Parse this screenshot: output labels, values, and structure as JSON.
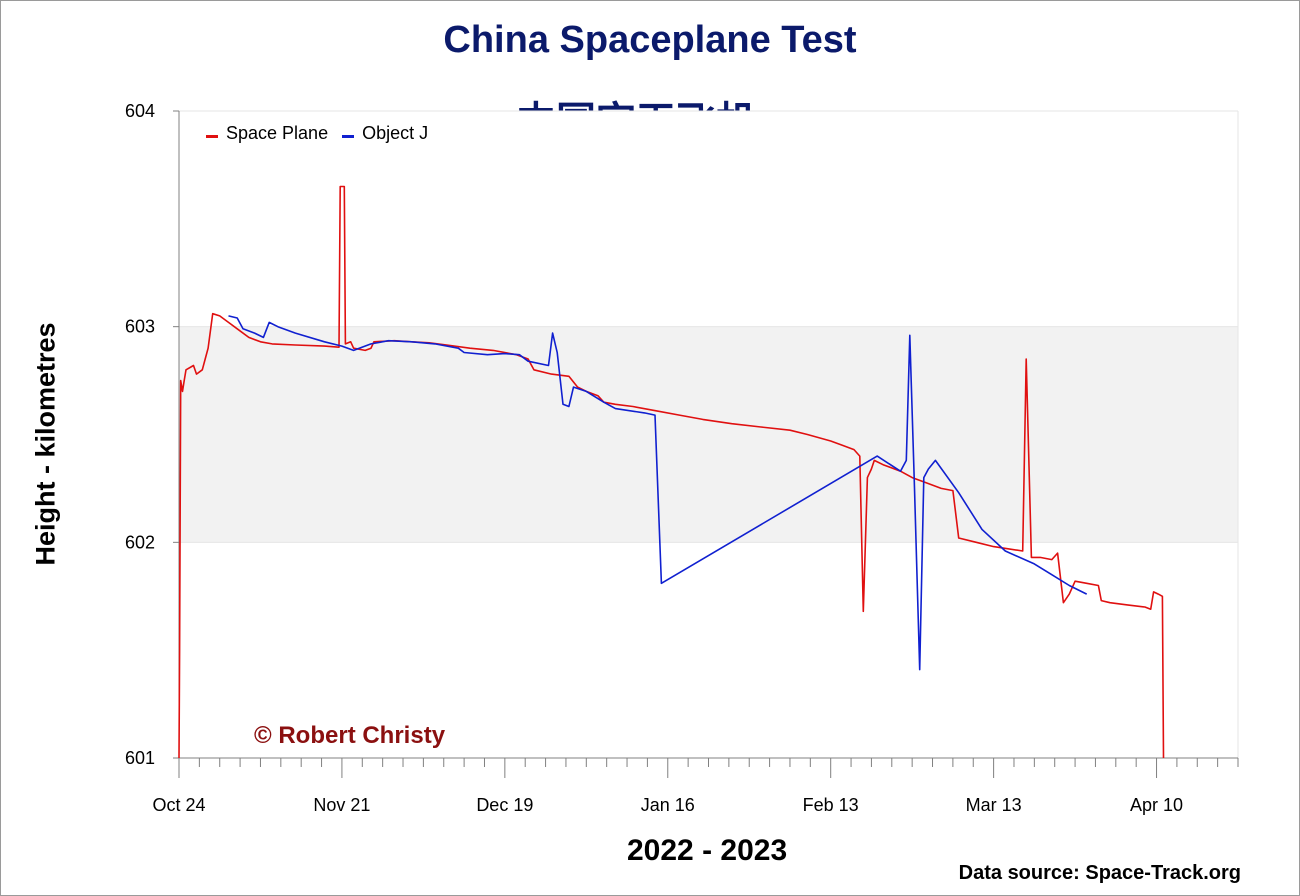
{
  "chart_data": {
    "type": "line",
    "title": "China Spaceplane Test",
    "subtitle": "中国空天飞机",
    "xlabel": "2022 - 2023",
    "ylabel": "Height - kilometres",
    "source": "Data source: Space-Track.org",
    "copyright": "© Robert Christy",
    "ylim": [
      601,
      604
    ],
    "yticks": [
      601,
      602,
      603,
      604
    ],
    "xlim_days": [
      0,
      182
    ],
    "x_start_label": "Oct 24",
    "xticks": [
      {
        "day": 0,
        "label": "Oct 24"
      },
      {
        "day": 28,
        "label": "Nov 21"
      },
      {
        "day": 56,
        "label": "Dec 19"
      },
      {
        "day": 84,
        "label": "Jan 16"
      },
      {
        "day": 112,
        "label": "Feb 13"
      },
      {
        "day": 140,
        "label": "Mar 13"
      },
      {
        "day": 168,
        "label": "Apr 10"
      }
    ],
    "shaded_band": [
      602,
      603
    ],
    "grid": true,
    "legend_position": "top-left",
    "series": [
      {
        "name": "Space Plane",
        "color": "#e01010",
        "points": [
          [
            0,
            601.0
          ],
          [
            0.1,
            601.5
          ],
          [
            0.3,
            602.75
          ],
          [
            0.6,
            602.7
          ],
          [
            0.9,
            602.75
          ],
          [
            1.2,
            602.8
          ],
          [
            2.5,
            602.82
          ],
          [
            3.0,
            602.78
          ],
          [
            4.0,
            602.8
          ],
          [
            4.5,
            602.85
          ],
          [
            5.0,
            602.9
          ],
          [
            5.8,
            603.06
          ],
          [
            7.0,
            603.05
          ],
          [
            8.5,
            603.02
          ],
          [
            10.0,
            602.99
          ],
          [
            12.0,
            602.95
          ],
          [
            14.0,
            602.93
          ],
          [
            16.0,
            602.92
          ],
          [
            20.0,
            602.915
          ],
          [
            25.0,
            602.91
          ],
          [
            27.5,
            602.905
          ],
          [
            27.7,
            603.65
          ],
          [
            28.4,
            603.65
          ],
          [
            28.6,
            602.92
          ],
          [
            29.5,
            602.93
          ],
          [
            30.0,
            602.9
          ],
          [
            32.0,
            602.89
          ],
          [
            33.0,
            602.9
          ],
          [
            33.5,
            602.93
          ],
          [
            37.0,
            602.935
          ],
          [
            40.0,
            602.93
          ],
          [
            43.0,
            602.925
          ],
          [
            46.0,
            602.915
          ],
          [
            50.0,
            602.9
          ],
          [
            54.0,
            602.89
          ],
          [
            58.0,
            602.87
          ],
          [
            60.0,
            602.85
          ],
          [
            61.0,
            602.8
          ],
          [
            64.0,
            602.78
          ],
          [
            67.0,
            602.77
          ],
          [
            68.5,
            602.72
          ],
          [
            70.0,
            602.7
          ],
          [
            72.0,
            602.68
          ],
          [
            73.0,
            602.65
          ],
          [
            75.0,
            602.64
          ],
          [
            78.0,
            602.63
          ],
          [
            82.0,
            602.61
          ],
          [
            86.0,
            602.59
          ],
          [
            90.0,
            602.57
          ],
          [
            95.0,
            602.55
          ],
          [
            100.0,
            602.535
          ],
          [
            105.0,
            602.52
          ],
          [
            108.0,
            602.5
          ],
          [
            112.0,
            602.47
          ],
          [
            114.0,
            602.45
          ],
          [
            116.0,
            602.43
          ],
          [
            117.0,
            602.4
          ],
          [
            117.6,
            601.68
          ],
          [
            118.3,
            602.3
          ],
          [
            119.0,
            602.34
          ],
          [
            119.5,
            602.38
          ],
          [
            121.0,
            602.36
          ],
          [
            124.0,
            602.33
          ],
          [
            126.0,
            602.3
          ],
          [
            128.0,
            602.28
          ],
          [
            131.0,
            602.25
          ],
          [
            133.0,
            602.24
          ],
          [
            134.0,
            602.02
          ],
          [
            137.0,
            602.0
          ],
          [
            140.0,
            601.98
          ],
          [
            145.0,
            601.96
          ],
          [
            145.6,
            602.85
          ],
          [
            146.5,
            601.93
          ],
          [
            148.0,
            601.93
          ],
          [
            150.0,
            601.92
          ],
          [
            151.0,
            601.95
          ],
          [
            152.0,
            601.72
          ],
          [
            153.0,
            601.76
          ],
          [
            154.0,
            601.82
          ],
          [
            156.0,
            601.81
          ],
          [
            158.0,
            601.8
          ],
          [
            158.5,
            601.73
          ],
          [
            160.0,
            601.72
          ],
          [
            163.0,
            601.71
          ],
          [
            166.0,
            601.7
          ],
          [
            167.0,
            601.69
          ],
          [
            167.5,
            601.77
          ],
          [
            168.3,
            601.76
          ],
          [
            169.0,
            601.75
          ],
          [
            169.2,
            601.0
          ]
        ]
      },
      {
        "name": "Object J",
        "color": "#1020d0",
        "points": [
          [
            8.5,
            603.05
          ],
          [
            10.0,
            603.04
          ],
          [
            11.0,
            602.99
          ],
          [
            13.0,
            602.97
          ],
          [
            14.5,
            602.95
          ],
          [
            15.5,
            603.02
          ],
          [
            17.0,
            603.0
          ],
          [
            20.0,
            602.97
          ],
          [
            25.0,
            602.93
          ],
          [
            28.0,
            602.91
          ],
          [
            30.0,
            602.89
          ],
          [
            33.0,
            602.92
          ],
          [
            36.0,
            602.935
          ],
          [
            40.0,
            602.93
          ],
          [
            44.0,
            602.92
          ],
          [
            48.0,
            602.9
          ],
          [
            49.0,
            602.88
          ],
          [
            53.0,
            602.87
          ],
          [
            56.0,
            602.875
          ],
          [
            58.5,
            602.87
          ],
          [
            60.0,
            602.84
          ],
          [
            63.5,
            602.82
          ],
          [
            64.2,
            602.97
          ],
          [
            65.0,
            602.88
          ],
          [
            66.0,
            602.64
          ],
          [
            67.0,
            602.63
          ],
          [
            67.8,
            602.72
          ],
          [
            70.0,
            602.7
          ],
          [
            73.0,
            602.65
          ],
          [
            75.0,
            602.62
          ],
          [
            80.0,
            602.6
          ],
          [
            81.8,
            602.59
          ],
          [
            82.9,
            601.81
          ],
          [
            120.0,
            602.4
          ],
          [
            124.0,
            602.33
          ],
          [
            125.0,
            602.38
          ],
          [
            125.6,
            602.96
          ],
          [
            126.4,
            602.25
          ],
          [
            127.3,
            601.41
          ],
          [
            128.0,
            602.3
          ],
          [
            128.8,
            602.34
          ],
          [
            130.0,
            602.38
          ],
          [
            134.0,
            602.23
          ],
          [
            138.0,
            602.06
          ],
          [
            142.0,
            601.96
          ],
          [
            147.0,
            601.9
          ],
          [
            150.0,
            601.85
          ],
          [
            153.0,
            601.8
          ],
          [
            156.0,
            601.76
          ]
        ]
      }
    ]
  }
}
